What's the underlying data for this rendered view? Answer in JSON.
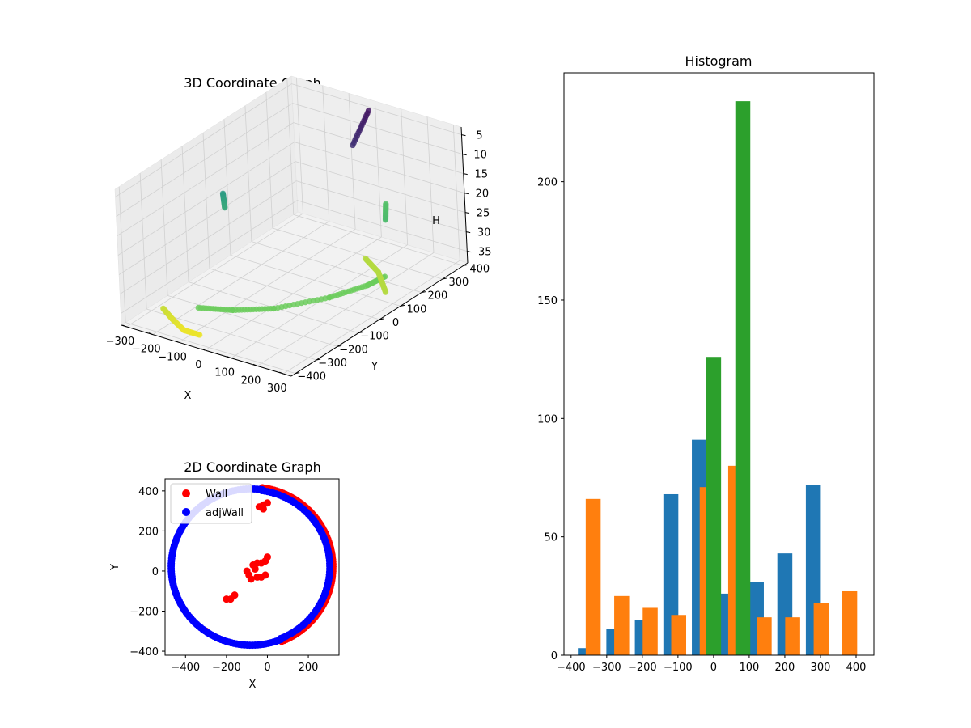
{
  "chart_data": [
    {
      "type": "scatter",
      "title": "3D Coordinate Graph",
      "xlabel": "X",
      "ylabel": "Y",
      "zlabel": "H",
      "xlim": [
        -320,
        330
      ],
      "ylim": [
        -420,
        420
      ],
      "zlim": [
        3,
        38
      ],
      "z_inverted": true,
      "x_ticks": [
        "−300",
        "−200",
        "−100",
        "0",
        "100",
        "200",
        "300"
      ],
      "y_ticks": [
        "−400",
        "−300",
        "−200",
        "−100",
        "0",
        "100",
        "200",
        "300",
        "400"
      ],
      "z_ticks": [
        "5",
        "10",
        "15",
        "20",
        "25",
        "30",
        "35"
      ],
      "colormap": "viridis",
      "segments": [
        {
          "x": [
            -10,
            40
          ],
          "y": [
            400,
            260
          ],
          "h": [
            5,
            8
          ]
        },
        {
          "x": [
            -330,
            -300
          ],
          "y": [
            90,
            60
          ],
          "h": [
            22,
            24
          ]
        },
        {
          "x": [
            -230,
            -180,
            -120,
            -60
          ],
          "y": [
            -330,
            -350,
            -370,
            -370
          ],
          "h": [
            35,
            36,
            37,
            37
          ]
        },
        {
          "x": [
            -60,
            40,
            140,
            240,
            290,
            300
          ],
          "y": [
            -370,
            -330,
            -260,
            -120,
            0,
            70
          ],
          "h": [
            30,
            30,
            30,
            30,
            30,
            30
          ]
        },
        {
          "x": [
            300,
            200,
            110
          ],
          "y": [
            70,
            160,
            210
          ],
          "h": [
            34,
            34,
            34
          ]
        },
        {
          "x": [
            40,
            120
          ],
          "y": [
            400,
            300
          ],
          "h": [
            28,
            27
          ]
        }
      ],
      "grid": true
    },
    {
      "type": "scatter",
      "title": "2D Coordinate Graph",
      "xlabel": "X",
      "ylabel": "Y",
      "xlim": [
        -500,
        350
      ],
      "ylim": [
        -420,
        460
      ],
      "x_ticks": [
        "−400",
        "−200",
        "0",
        "200"
      ],
      "y_ticks": [
        "−400",
        "−200",
        "0",
        "200",
        "400"
      ],
      "legend_position": "upper-left",
      "series": [
        {
          "name": "Wall",
          "color": "#ff0000"
        },
        {
          "name": "adjWall",
          "color": "#0000ff"
        }
      ],
      "wall_arc": {
        "cx": -80,
        "cy": 20,
        "r": 400,
        "from_deg": -68,
        "to_deg": 82
      },
      "wall_cluster": [
        [
          -50,
          40
        ],
        [
          -30,
          40
        ],
        [
          -10,
          50
        ],
        [
          0,
          70
        ],
        [
          -60,
          10
        ],
        [
          -70,
          30
        ],
        [
          -50,
          -30
        ],
        [
          -30,
          -30
        ],
        [
          -10,
          -20
        ],
        [
          -100,
          0
        ],
        [
          -90,
          -20
        ],
        [
          -80,
          -40
        ],
        [
          -200,
          -140
        ],
        [
          -180,
          -140
        ],
        [
          -160,
          -120
        ],
        [
          -300,
          -300
        ],
        [
          -20,
          330
        ],
        [
          0,
          340
        ],
        [
          -40,
          320
        ],
        [
          -20,
          310
        ]
      ],
      "adjwall_arc": {
        "cx": -80,
        "cy": 20,
        "r": 390,
        "from_deg": 82,
        "to_deg": 292
      },
      "adjwall_right_arc": {
        "cx": -80,
        "cy": 20,
        "r": 385,
        "from_deg": -68,
        "to_deg": 82
      }
    },
    {
      "type": "bar",
      "title": "Histogram",
      "xlim": [
        -420,
        450
      ],
      "ylim": [
        0,
        246
      ],
      "x_ticks": [
        "−400",
        "−300",
        "−200",
        "−100",
        "0",
        "100",
        "200",
        "300",
        "400"
      ],
      "y_ticks": [
        "0",
        "50",
        "100",
        "150",
        "200"
      ],
      "series": [
        {
          "color": "#1f77b4",
          "bins": [
            [
              -360,
              3
            ],
            [
              -280,
              11
            ],
            [
              -200,
              15
            ],
            [
              -120,
              68
            ],
            [
              -40,
              91
            ],
            [
              40,
              26
            ],
            [
              120,
              31
            ],
            [
              200,
              43
            ],
            [
              280,
              72
            ]
          ]
        },
        {
          "color": "#ff7f0e",
          "bins": [
            [
              -338,
              66
            ],
            [
              -258,
              25
            ],
            [
              -178,
              20
            ],
            [
              -98,
              17
            ],
            [
              -18,
              71
            ],
            [
              62,
              80
            ],
            [
              142,
              16
            ],
            [
              222,
              16
            ],
            [
              302,
              22
            ],
            [
              382,
              27
            ]
          ]
        },
        {
          "color": "#2ca02c",
          "bins": [
            [
              0,
              126
            ],
            [
              82,
              234
            ]
          ]
        }
      ]
    }
  ]
}
